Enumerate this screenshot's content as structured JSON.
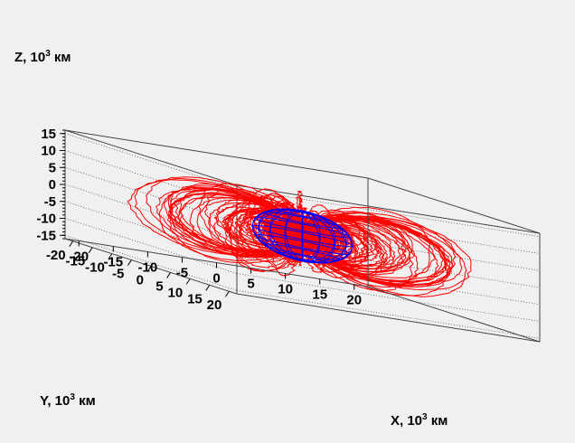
{
  "chart_data": {
    "type": "3d-line",
    "axes": {
      "x": {
        "title_prefix": "X, 10",
        "title_exp": "3",
        "title_suffix": " км",
        "range": [
          -22,
          22
        ],
        "ticks": [
          -20,
          -15,
          -10,
          -5,
          0,
          5,
          10,
          15,
          20
        ]
      },
      "y": {
        "title_prefix": "Y, 10",
        "title_exp": "3",
        "title_suffix": " км",
        "range": [
          -22,
          22
        ],
        "ticks": [
          20,
          15,
          10,
          5,
          0,
          -5,
          -10,
          -15,
          -20
        ]
      },
      "z": {
        "title_prefix": "Z, 10",
        "title_exp": "3",
        "title_suffix": " км",
        "range": [
          -16,
          16
        ],
        "ticks": [
          15,
          10,
          5,
          0,
          -5,
          -10,
          -15
        ]
      }
    },
    "grid": true,
    "series": [
      {
        "color": "#ff0000",
        "kind": "field-lines"
      },
      {
        "color": "#0000ff",
        "kind": "sphere-wireframe"
      }
    ]
  }
}
